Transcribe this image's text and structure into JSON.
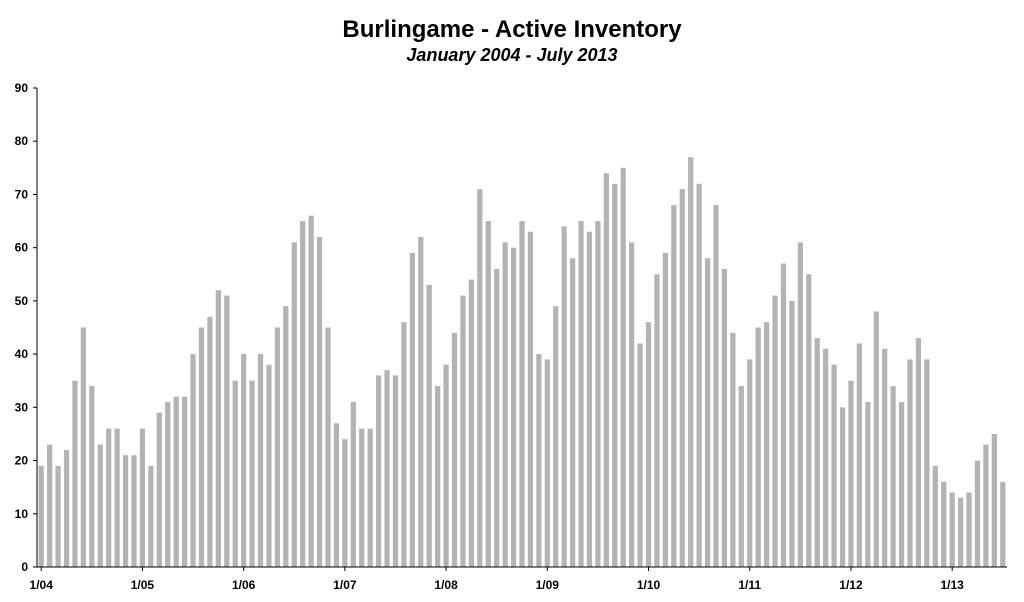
{
  "chart_data": {
    "type": "bar",
    "title": "Burlingame - Active Inventory",
    "subtitle": "January 2004 - July 2013",
    "xlabel": "",
    "ylabel": "",
    "ylim": [
      0,
      90
    ],
    "yticks": [
      0,
      10,
      20,
      30,
      40,
      50,
      60,
      70,
      80,
      90
    ],
    "grid": false,
    "legend": "none",
    "bar_color": "#b3b3b3",
    "x_tick_labels": [
      {
        "index": 0,
        "label": "1/04"
      },
      {
        "index": 12,
        "label": "1/05"
      },
      {
        "index": 24,
        "label": "1/06"
      },
      {
        "index": 36,
        "label": "1/07"
      },
      {
        "index": 48,
        "label": "1/08"
      },
      {
        "index": 60,
        "label": "1/09"
      },
      {
        "index": 72,
        "label": "1/10"
      },
      {
        "index": 84,
        "label": "1/11"
      },
      {
        "index": 96,
        "label": "1/12"
      },
      {
        "index": 108,
        "label": "1/13"
      }
    ],
    "categories": [
      "1/04",
      "2/04",
      "3/04",
      "4/04",
      "5/04",
      "6/04",
      "7/04",
      "8/04",
      "9/04",
      "10/04",
      "11/04",
      "12/04",
      "1/05",
      "2/05",
      "3/05",
      "4/05",
      "5/05",
      "6/05",
      "7/05",
      "8/05",
      "9/05",
      "10/05",
      "11/05",
      "12/05",
      "1/06",
      "2/06",
      "3/06",
      "4/06",
      "5/06",
      "6/06",
      "7/06",
      "8/06",
      "9/06",
      "10/06",
      "11/06",
      "12/06",
      "1/07",
      "2/07",
      "3/07",
      "4/07",
      "5/07",
      "6/07",
      "7/07",
      "8/07",
      "9/07",
      "10/07",
      "11/07",
      "12/07",
      "1/08",
      "2/08",
      "3/08",
      "4/08",
      "5/08",
      "6/08",
      "7/08",
      "8/08",
      "9/08",
      "10/08",
      "11/08",
      "12/08",
      "1/09",
      "2/09",
      "3/09",
      "4/09",
      "5/09",
      "6/09",
      "7/09",
      "8/09",
      "9/09",
      "10/09",
      "11/09",
      "12/09",
      "1/10",
      "2/10",
      "3/10",
      "4/10",
      "5/10",
      "6/10",
      "7/10",
      "8/10",
      "9/10",
      "10/10",
      "11/10",
      "12/10",
      "1/11",
      "2/11",
      "3/11",
      "4/11",
      "5/11",
      "6/11",
      "7/11",
      "8/11",
      "9/11",
      "10/11",
      "11/11",
      "12/11",
      "1/12",
      "2/12",
      "3/12",
      "4/12",
      "5/12",
      "6/12",
      "7/12",
      "8/12",
      "9/12",
      "10/12",
      "11/12",
      "12/12",
      "1/13",
      "2/13",
      "3/13",
      "4/13",
      "5/13",
      "6/13",
      "7/13"
    ],
    "values": [
      19,
      23,
      19,
      22,
      35,
      45,
      34,
      23,
      26,
      26,
      21,
      21,
      26,
      19,
      29,
      31,
      32,
      32,
      40,
      45,
      47,
      52,
      51,
      35,
      40,
      35,
      40,
      38,
      45,
      49,
      61,
      65,
      66,
      62,
      45,
      27,
      24,
      31,
      26,
      26,
      36,
      37,
      36,
      46,
      59,
      62,
      53,
      34,
      38,
      44,
      51,
      54,
      71,
      65,
      56,
      61,
      60,
      65,
      63,
      40,
      39,
      49,
      64,
      58,
      65,
      63,
      65,
      74,
      72,
      75,
      61,
      42,
      46,
      55,
      59,
      68,
      71,
      77,
      72,
      58,
      68,
      56,
      44,
      34,
      39,
      45,
      46,
      51,
      57,
      50,
      61,
      55,
      43,
      41,
      38,
      30,
      35,
      42,
      31,
      48,
      41,
      34,
      31,
      39,
      43,
      39,
      19,
      16,
      14,
      13,
      14,
      20,
      23,
      25,
      16
    ]
  }
}
